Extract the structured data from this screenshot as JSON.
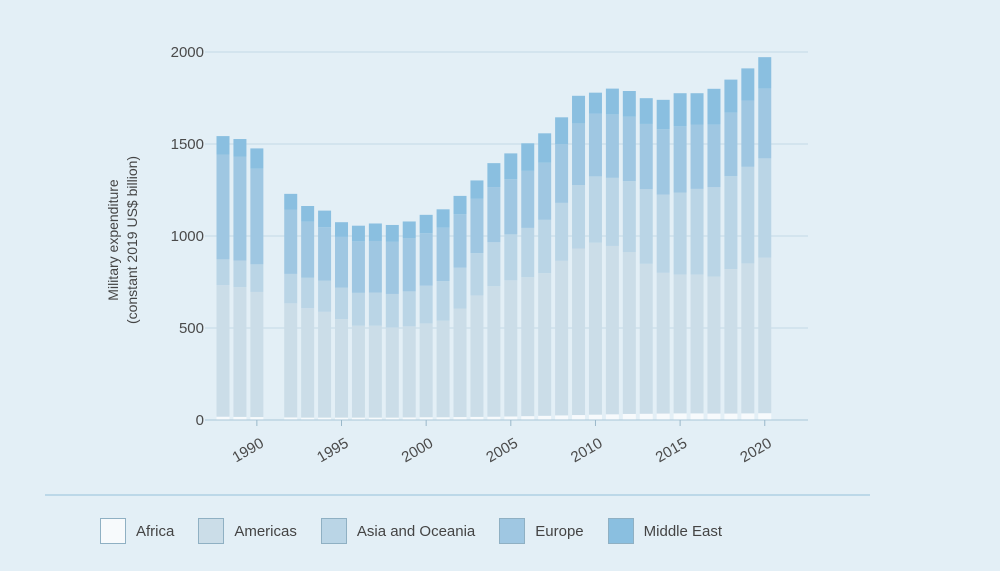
{
  "chart_data": {
    "type": "bar",
    "stacked": true,
    "title": "",
    "xlabel": "",
    "ylabel_lines": [
      "Military expenditure",
      "(constant 2019 US$ billion)"
    ],
    "ylim": [
      0,
      2000
    ],
    "yticks": [
      0,
      500,
      1000,
      1500,
      2000
    ],
    "xticks": [
      1990,
      1995,
      2000,
      2005,
      2010,
      2015,
      2020
    ],
    "x_range": [
      1988,
      2020
    ],
    "grid": "horizontal",
    "legend_position": "bottom",
    "categories": [
      1988,
      1989,
      1990,
      1992,
      1993,
      1994,
      1995,
      1996,
      1997,
      1998,
      1999,
      2000,
      2001,
      2002,
      2003,
      2004,
      2005,
      2006,
      2007,
      2008,
      2009,
      2010,
      2011,
      2012,
      2013,
      2014,
      2015,
      2016,
      2017,
      2018,
      2019,
      2020
    ],
    "series": [
      {
        "name": "Africa",
        "color": "#f7fafc",
        "values": [
          18,
          17,
          16,
          14,
          13,
          13,
          13,
          13,
          13,
          13,
          14,
          15,
          15,
          16,
          17,
          18,
          19,
          21,
          23,
          25,
          27,
          29,
          31,
          33,
          34,
          35,
          36,
          36,
          35,
          35,
          36,
          37
        ]
      },
      {
        "name": "Americas",
        "color": "#cbdde8",
        "values": [
          715,
          705,
          680,
          620,
          595,
          575,
          535,
          500,
          500,
          490,
          495,
          510,
          525,
          590,
          660,
          710,
          740,
          755,
          775,
          840,
          905,
          935,
          915,
          880,
          815,
          765,
          755,
          755,
          745,
          785,
          815,
          845
        ]
      },
      {
        "name": "Asia and Oceania",
        "color": "#bad5e6",
        "values": [
          140,
          145,
          150,
          160,
          165,
          170,
          172,
          178,
          180,
          182,
          190,
          205,
          215,
          222,
          230,
          238,
          250,
          268,
          290,
          315,
          345,
          360,
          370,
          385,
          405,
          425,
          445,
          465,
          485,
          505,
          525,
          540
        ]
      },
      {
        "name": "Europe",
        "color": "#9fc7e2",
        "values": [
          570,
          565,
          520,
          350,
          305,
          290,
          275,
          280,
          280,
          285,
          290,
          285,
          290,
          290,
          295,
          300,
          300,
          310,
          310,
          320,
          335,
          340,
          345,
          350,
          355,
          355,
          360,
          350,
          340,
          345,
          360,
          380
        ]
      },
      {
        "name": "Middle East",
        "color": "#8abfe0",
        "values": [
          100,
          95,
          110,
          85,
          85,
          90,
          80,
          85,
          95,
          90,
          90,
          100,
          100,
          100,
          100,
          130,
          140,
          150,
          160,
          145,
          150,
          115,
          140,
          140,
          140,
          160,
          180,
          170,
          195,
          180,
          175,
          170
        ]
      }
    ]
  }
}
